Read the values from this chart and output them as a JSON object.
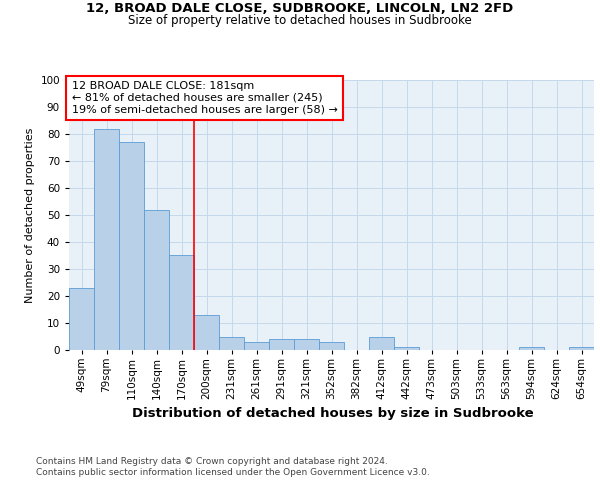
{
  "title_line1": "12, BROAD DALE CLOSE, SUDBROOKE, LINCOLN, LN2 2FD",
  "title_line2": "Size of property relative to detached houses in Sudbrooke",
  "xlabel": "Distribution of detached houses by size in Sudbrooke",
  "ylabel": "Number of detached properties",
  "categories": [
    "49sqm",
    "79sqm",
    "110sqm",
    "140sqm",
    "170sqm",
    "200sqm",
    "231sqm",
    "261sqm",
    "291sqm",
    "321sqm",
    "352sqm",
    "382sqm",
    "412sqm",
    "442sqm",
    "473sqm",
    "503sqm",
    "533sqm",
    "563sqm",
    "594sqm",
    "624sqm",
    "654sqm"
  ],
  "values": [
    23,
    82,
    77,
    52,
    35,
    13,
    5,
    3,
    4,
    4,
    3,
    0,
    5,
    1,
    0,
    0,
    0,
    0,
    1,
    0,
    1
  ],
  "bar_color": "#b8d0e8",
  "bar_edge_color": "#5b9bd5",
  "grid_color": "#c5d8ec",
  "background_color": "#e8f0f8",
  "annotation_text_line1": "12 BROAD DALE CLOSE: 181sqm",
  "annotation_text_line2": "← 81% of detached houses are smaller (245)",
  "annotation_text_line3": "19% of semi-detached houses are larger (58) →",
  "annotation_box_facecolor": "white",
  "annotation_box_edgecolor": "red",
  "vline_x": 4.5,
  "vline_color": "red",
  "footnote_line1": "Contains HM Land Registry data © Crown copyright and database right 2024.",
  "footnote_line2": "Contains public sector information licensed under the Open Government Licence v3.0.",
  "ylim": [
    0,
    100
  ],
  "title1_fontsize": 9.5,
  "title2_fontsize": 8.5,
  "ylabel_fontsize": 8,
  "xlabel_fontsize": 9.5,
  "tick_fontsize": 7.5,
  "annot_fontsize": 8,
  "footnote_fontsize": 6.5
}
